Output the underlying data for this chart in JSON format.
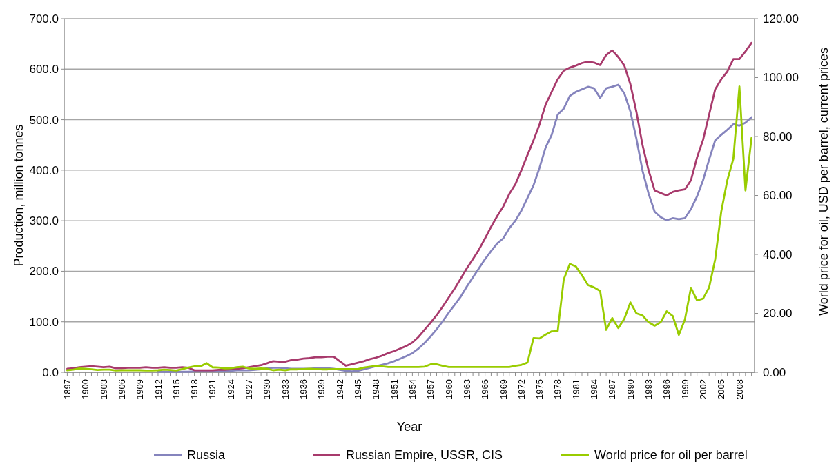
{
  "chart_data": {
    "type": "line",
    "xlabel": "Year",
    "ylabel": "Production, million tonnes",
    "y2label": "World price for oil, USD per barrel, current prices",
    "x": [
      1897,
      1898,
      1899,
      1900,
      1901,
      1902,
      1903,
      1904,
      1905,
      1906,
      1907,
      1908,
      1909,
      1910,
      1911,
      1912,
      1913,
      1914,
      1915,
      1916,
      1917,
      1918,
      1919,
      1920,
      1921,
      1922,
      1923,
      1924,
      1925,
      1926,
      1927,
      1928,
      1929,
      1930,
      1931,
      1932,
      1933,
      1934,
      1935,
      1936,
      1937,
      1938,
      1939,
      1940,
      1941,
      1942,
      1943,
      1944,
      1945,
      1946,
      1947,
      1948,
      1949,
      1950,
      1951,
      1952,
      1953,
      1954,
      1955,
      1956,
      1957,
      1958,
      1959,
      1960,
      1961,
      1962,
      1963,
      1964,
      1965,
      1966,
      1967,
      1968,
      1969,
      1970,
      1971,
      1972,
      1973,
      1974,
      1975,
      1976,
      1977,
      1978,
      1979,
      1980,
      1981,
      1982,
      1983,
      1984,
      1985,
      1986,
      1987,
      1988,
      1989,
      1990,
      1991,
      1992,
      1993,
      1994,
      1995,
      1996,
      1997,
      1998,
      1999,
      2000,
      2001,
      2002,
      2003,
      2004,
      2005,
      2006,
      2007,
      2008,
      2009,
      2010
    ],
    "series": [
      {
        "name": "Russia",
        "color": "#8584bd",
        "values": [
          null,
          null,
          null,
          null,
          null,
          null,
          null,
          null,
          null,
          null,
          null,
          null,
          null,
          null,
          null,
          1,
          1,
          1,
          1,
          1,
          1,
          2,
          2,
          2,
          2,
          2,
          3,
          3,
          4,
          4,
          4,
          5,
          6,
          8,
          9,
          9,
          8,
          7,
          7,
          7,
          7,
          8,
          8,
          8,
          7,
          5,
          3,
          2,
          3,
          6,
          9,
          12,
          15,
          18,
          22,
          27,
          32,
          38,
          47,
          58,
          71,
          85,
          101,
          118,
          134,
          150,
          170,
          188,
          206,
          224,
          240,
          255,
          265,
          285,
          300,
          320,
          345,
          370,
          405,
          445,
          470,
          510,
          522,
          547,
          555,
          560,
          565,
          562,
          543,
          562,
          565,
          569,
          552,
          516,
          462,
          399,
          354,
          318,
          307,
          301,
          305,
          303,
          305,
          323,
          348,
          380,
          421,
          459,
          470,
          480,
          491,
          488,
          494,
          505
        ]
      },
      {
        "name": "Russian Empire, USSR, CIS",
        "color": "#a83a6c",
        "values": [
          7,
          8,
          10,
          11,
          12,
          11,
          10,
          11,
          8,
          8,
          9,
          9,
          9,
          10,
          9,
          9,
          10,
          9,
          9,
          10,
          9,
          4,
          4,
          4,
          4,
          5,
          5,
          6,
          7,
          8,
          10,
          12,
          14,
          18,
          22,
          21,
          21,
          24,
          25,
          27,
          28,
          30,
          30,
          31,
          31,
          22,
          13,
          16,
          19,
          22,
          26,
          29,
          33,
          38,
          42,
          47,
          52,
          59,
          70,
          84,
          98,
          113,
          130,
          148,
          166,
          186,
          206,
          224,
          243,
          265,
          288,
          309,
          328,
          353,
          372,
          400,
          430,
          459,
          491,
          530,
          555,
          580,
          597,
          603,
          607,
          612,
          615,
          613,
          608,
          628,
          637,
          624,
          607,
          570,
          515,
          450,
          400,
          360,
          355,
          350,
          357,
          360,
          362,
          380,
          425,
          460,
          510,
          560,
          580,
          595,
          620,
          620,
          635,
          652
        ]
      },
      {
        "name": "World price for oil per barrel",
        "color": "#99cc00",
        "axis": "y2",
        "values": [
          0.7,
          0.9,
          1.3,
          1.2,
          1.0,
          0.8,
          0.9,
          0.9,
          0.6,
          0.7,
          0.7,
          0.7,
          0.7,
          0.6,
          0.6,
          0.7,
          0.9,
          0.8,
          0.6,
          1.1,
          1.6,
          2.0,
          2.0,
          3.1,
          1.7,
          1.6,
          1.3,
          1.4,
          1.7,
          1.9,
          1.3,
          1.2,
          1.3,
          1.2,
          0.7,
          0.9,
          0.7,
          1.0,
          1.0,
          1.1,
          1.2,
          1.1,
          1.0,
          1.0,
          1.1,
          1.1,
          1.1,
          1.1,
          1.1,
          1.6,
          1.9,
          2.2,
          2.0,
          1.8,
          1.8,
          1.8,
          1.8,
          1.8,
          1.8,
          1.9,
          2.7,
          2.7,
          2.2,
          1.8,
          1.8,
          1.8,
          1.8,
          1.8,
          1.8,
          1.8,
          1.8,
          1.8,
          1.8,
          1.8,
          2.2,
          2.5,
          3.3,
          11.6,
          11.5,
          12.8,
          13.9,
          14.0,
          31.6,
          36.8,
          35.9,
          32.9,
          29.6,
          28.8,
          27.6,
          14.4,
          18.4,
          15.0,
          18.2,
          23.7,
          20.0,
          19.3,
          17.0,
          15.8,
          17.0,
          20.7,
          19.1,
          12.7,
          17.9,
          28.7,
          24.4,
          25.0,
          28.8,
          38.3,
          54.5,
          65.1,
          72.4,
          97.0,
          61.7,
          79.5
        ]
      }
    ],
    "xlim": [
      1896.5,
      2010.5
    ],
    "xticks": [
      1897,
      {
        "value": 1898,
        "label": null
      },
      {
        "value": 1899,
        "label": null
      },
      1900,
      {
        "value": 1901,
        "label": null
      },
      {
        "value": 1902,
        "label": null
      },
      1903,
      {
        "value": 1904,
        "label": null
      },
      {
        "value": 1905,
        "label": null
      },
      1906,
      {
        "value": 1907,
        "label": null
      },
      {
        "value": 1908,
        "label": null
      },
      1909,
      {
        "value": 1910,
        "label": null
      },
      {
        "value": 1911,
        "label": null
      },
      1912,
      {
        "value": 1913,
        "label": null
      },
      {
        "value": 1914,
        "label": null
      },
      1915,
      {
        "value": 1916,
        "label": null
      },
      {
        "value": 1917,
        "label": null
      },
      1918,
      {
        "value": 1919,
        "label": null
      },
      {
        "value": 1920,
        "label": null
      },
      1921,
      {
        "value": 1922,
        "label": null
      },
      {
        "value": 1923,
        "label": null
      },
      1924,
      {
        "value": 1925,
        "label": null
      },
      {
        "value": 1926,
        "label": null
      },
      1927,
      {
        "value": 1928,
        "label": null
      },
      {
        "value": 1929,
        "label": null
      },
      1930,
      {
        "value": 1931,
        "label": null
      },
      {
        "value": 1932,
        "label": null
      },
      1933,
      {
        "value": 1934,
        "label": null
      },
      {
        "value": 1935,
        "label": null
      },
      1936,
      {
        "value": 1937,
        "label": null
      },
      {
        "value": 1938,
        "label": null
      },
      1939,
      {
        "value": 1940,
        "label": null
      },
      {
        "value": 1941,
        "label": null
      },
      1942,
      {
        "value": 1943,
        "label": null
      },
      {
        "value": 1944,
        "label": null
      },
      1945,
      {
        "value": 1946,
        "label": null
      },
      {
        "value": 1947,
        "label": null
      },
      1948,
      {
        "value": 1949,
        "label": null
      },
      {
        "value": 1950,
        "label": null
      },
      1951,
      {
        "value": 1952,
        "label": null
      },
      {
        "value": 1953,
        "label": null
      },
      1954,
      {
        "value": 1955,
        "label": null
      },
      {
        "value": 1956,
        "label": null
      },
      1957,
      {
        "value": 1958,
        "label": null
      },
      {
        "value": 1959,
        "label": null
      },
      1960,
      {
        "value": 1961,
        "label": null
      },
      {
        "value": 1962,
        "label": null
      },
      1963,
      {
        "value": 1964,
        "label": null
      },
      {
        "value": 1965,
        "label": null
      },
      1966,
      {
        "value": 1967,
        "label": null
      },
      {
        "value": 1968,
        "label": null
      },
      1969,
      {
        "value": 1970,
        "label": null
      },
      {
        "value": 1971,
        "label": null
      },
      1972,
      {
        "value": 1973,
        "label": null
      },
      {
        "value": 1974,
        "label": null
      },
      1975,
      {
        "value": 1976,
        "label": null
      },
      {
        "value": 1977,
        "label": null
      },
      1978,
      {
        "value": 1979,
        "label": null
      },
      {
        "value": 1980,
        "label": null
      },
      1981,
      {
        "value": 1982,
        "label": null
      },
      {
        "value": 1983,
        "label": null
      },
      1984,
      {
        "value": 1985,
        "label": null
      },
      {
        "value": 1986,
        "label": null
      },
      1987,
      {
        "value": 1988,
        "label": null
      },
      {
        "value": 1989,
        "label": null
      },
      1990,
      {
        "value": 1991,
        "label": null
      },
      {
        "value": 1992,
        "label": null
      },
      1993,
      {
        "value": 1994,
        "label": null
      },
      {
        "value": 1995,
        "label": null
      },
      1996,
      {
        "value": 1997,
        "label": null
      },
      {
        "value": 1998,
        "label": null
      },
      1999,
      {
        "value": 2000,
        "label": null
      },
      {
        "value": 2001,
        "label": null
      },
      2002,
      {
        "value": 2003,
        "label": null
      },
      {
        "value": 2004,
        "label": null
      },
      2005,
      {
        "value": 2006,
        "label": null
      },
      {
        "value": 2007,
        "label": null
      },
      2008,
      {
        "value": 2009,
        "label": null
      },
      {
        "value": 2010,
        "label": null
      }
    ],
    "ylim": [
      0,
      700
    ],
    "yticks": [
      {
        "value": 0,
        "label": "0.0"
      },
      {
        "value": 100,
        "label": "100.0"
      },
      {
        "value": 200,
        "label": "200.0"
      },
      {
        "value": 300,
        "label": "300.0"
      },
      {
        "value": 400,
        "label": "400.0"
      },
      {
        "value": 500,
        "label": "500.0"
      },
      {
        "value": 600,
        "label": "600.0"
      },
      {
        "value": 700,
        "label": "700.0"
      }
    ],
    "y2lim": [
      0,
      120
    ],
    "y2ticks": [
      {
        "value": 0,
        "label": "0.00"
      },
      {
        "value": 20,
        "label": "20.00"
      },
      {
        "value": 40,
        "label": "40.00"
      },
      {
        "value": 60,
        "label": "60.00"
      },
      {
        "value": 80,
        "label": "80.00"
      },
      {
        "value": 100,
        "label": "100.00"
      },
      {
        "value": 120,
        "label": "120.00"
      }
    ],
    "grid": "y",
    "legend": "bottom",
    "marker": "none",
    "line_style": "solid"
  }
}
